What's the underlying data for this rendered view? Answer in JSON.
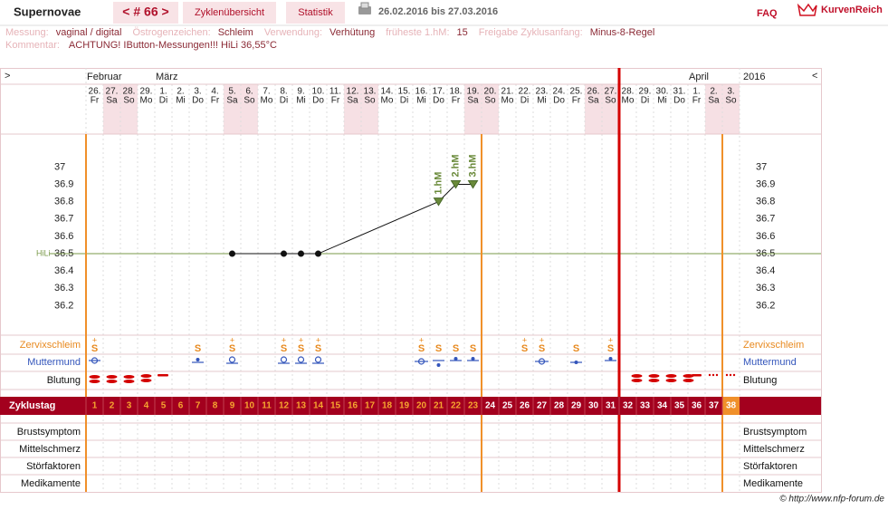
{
  "header": {
    "title": "Supernovae",
    "cycle": "< # 66 >",
    "tabs": [
      "Zyklenübersicht",
      "Statistik"
    ],
    "date_range": "26.02.2016 bis 27.03.2016",
    "faq": "FAQ",
    "logo": "KurvenReich"
  },
  "info": {
    "fields": [
      {
        "label": "Messung:",
        "value": "vaginal / digital"
      },
      {
        "label": "Östrogenzeichen:",
        "value": "Schleim"
      },
      {
        "label": "Verwendung:",
        "value": "Verhütung"
      },
      {
        "label": "früheste 1.hM:",
        "value": "15"
      },
      {
        "label": "Freigabe Zyklusanfang:",
        "value": "Minus-8-Regel"
      }
    ],
    "comment": {
      "label": "Kommentar:",
      "value": "ACHTUNG! IButton-Messungen!!! HiLi 36,55°C"
    }
  },
  "chart": {
    "nav_left": ">",
    "nav_right": "<",
    "year": "2016",
    "months": [
      "Februar",
      null,
      null,
      null,
      "März",
      null,
      null,
      null,
      null,
      null,
      null,
      null,
      null,
      null,
      null,
      null,
      null,
      null,
      null,
      null,
      null,
      null,
      null,
      null,
      null,
      null,
      null,
      null,
      null,
      null,
      null,
      null,
      null,
      null,
      null,
      "April",
      null,
      null
    ],
    "dates": [
      "26.",
      "27.",
      "28.",
      "29.",
      "1.",
      "2.",
      "3.",
      "4.",
      "5.",
      "6.",
      "7.",
      "8.",
      "9.",
      "10.",
      "11.",
      "12.",
      "13.",
      "14.",
      "15.",
      "16.",
      "17.",
      "18.",
      "19.",
      "20.",
      "21.",
      "22.",
      "23.",
      "24.",
      "25.",
      "26.",
      "27.",
      "28.",
      "29.",
      "30.",
      "31.",
      "1.",
      "2.",
      "3."
    ],
    "weekdays": [
      "Fr",
      "Sa",
      "So",
      "Mo",
      "Di",
      "Mi",
      "Do",
      "Fr",
      "Sa",
      "So",
      "Mo",
      "Di",
      "Mi",
      "Do",
      "Fr",
      "Sa",
      "So",
      "Mo",
      "Di",
      "Mi",
      "Do",
      "Fr",
      "Sa",
      "So",
      "Mo",
      "Di",
      "Mi",
      "Do",
      "Fr",
      "Sa",
      "So",
      "Mo",
      "Di",
      "Mi",
      "Do",
      "Fr",
      "Sa",
      "So"
    ],
    "ylim": [
      36.03,
      37.19
    ],
    "yticks": [
      36.2,
      36.3,
      36.4,
      36.5,
      36.6,
      36.7,
      36.8,
      36.9,
      37
    ],
    "cover_line": {
      "label": "HiLi",
      "value": 36.5
    },
    "temperatures": {
      "days": [
        9,
        12,
        13,
        14,
        21,
        22,
        23
      ],
      "values": [
        36.5,
        36.5,
        36.5,
        36.5,
        36.8,
        36.9,
        36.9
      ]
    },
    "higher_measurements": {
      "days": [
        21,
        22,
        23
      ],
      "labels": [
        "1.hM",
        "2.hM",
        "3.hM"
      ]
    },
    "row_labels": {
      "zervixschleim": "Zervixschleim",
      "muttermund": "Muttermund",
      "blutung": "Blutung",
      "zyklustag": "Zyklustag",
      "brustsymptom": "Brustsymptom",
      "mittelschmerz": "Mittelschmerz",
      "stoerfaktoren": "Störfaktoren",
      "medikamente": "Medikamente"
    },
    "zervixschleim": [
      "S",
      null,
      null,
      null,
      null,
      null,
      "S",
      null,
      "S",
      null,
      null,
      "S",
      "S",
      "S",
      null,
      null,
      null,
      null,
      null,
      "S",
      "S",
      "S",
      "S",
      null,
      null,
      "S",
      "S",
      null,
      "S",
      null,
      "S",
      null,
      null,
      null,
      null,
      null,
      null,
      null
    ],
    "zervixschleim_plus": [
      "+",
      null,
      null,
      null,
      null,
      null,
      null,
      null,
      "+",
      null,
      null,
      "+",
      "+",
      "+",
      null,
      null,
      null,
      null,
      null,
      "+",
      null,
      null,
      null,
      null,
      null,
      "+",
      "+",
      null,
      null,
      null,
      "+",
      null,
      null,
      null,
      null,
      null,
      null,
      null
    ],
    "cycle_days": [
      1,
      2,
      3,
      4,
      5,
      6,
      7,
      8,
      9,
      10,
      11,
      12,
      13,
      14,
      15,
      16,
      17,
      18,
      19,
      20,
      21,
      22,
      23,
      24,
      25,
      26,
      27,
      28,
      29,
      30,
      31,
      32,
      33,
      34,
      35,
      36,
      37,
      38
    ]
  },
  "footer": "© http://www.nfp-forum.de"
}
